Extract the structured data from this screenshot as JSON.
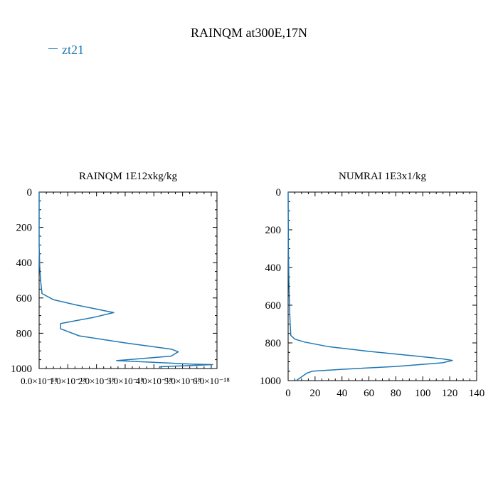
{
  "figure": {
    "title": "RAINQM at300E,17N",
    "legend": {
      "label": "zt21",
      "color": "#1f77b4"
    }
  },
  "chart_data": [
    {
      "type": "line",
      "title": "RAINQM  1E12xkg/kg",
      "xlabel": "",
      "ylabel": "",
      "xlim": [
        0,
        6.2e-18
      ],
      "ylim": [
        1000,
        0
      ],
      "x_ticks": [
        0,
        1e-18,
        2e-18,
        3e-18,
        4e-18,
        5e-18,
        6e-18
      ],
      "x_tick_labels": [
        "0.0×10⁻¹⁸",
        "1.0×10⁻¹⁸",
        "2.0×10⁻¹⁸",
        "3.0×10⁻¹⁸",
        "4.0×10⁻¹⁸",
        "5.0×10⁻¹⁸",
        "6.0×10⁻¹⁸"
      ],
      "y_ticks": [
        0,
        200,
        400,
        600,
        800,
        1000
      ],
      "y_tick_labels": [
        "0",
        "200",
        "400",
        "600",
        "800",
        "1000"
      ],
      "series": [
        {
          "name": "zt21",
          "color": "#1f77b4",
          "points": [
            [
              0,
              0
            ],
            [
              0,
              300
            ],
            [
              2e-20,
              420
            ],
            [
              5e-20,
              500
            ],
            [
              1e-19,
              575
            ],
            [
              5e-19,
              610
            ],
            [
              1.3e-18,
              640
            ],
            [
              2.6e-18,
              683
            ],
            [
              1.9e-18,
              710
            ],
            [
              7.5e-19,
              745
            ],
            [
              7.5e-19,
              775
            ],
            [
              1.4e-18,
              815
            ],
            [
              3e-18,
              855
            ],
            [
              4.6e-18,
              890
            ],
            [
              4.85e-18,
              905
            ],
            [
              4.6e-18,
              930
            ],
            [
              2.7e-18,
              955
            ],
            [
              5.3e-18,
              975
            ],
            [
              6.05e-18,
              978
            ],
            [
              4.2e-18,
              990
            ],
            [
              4.2e-18,
              1000
            ]
          ]
        }
      ]
    },
    {
      "type": "line",
      "title": "NUMRAI  1E3x1/kg",
      "xlabel": "",
      "ylabel": "",
      "xlim": [
        0,
        140
      ],
      "ylim": [
        1000,
        0
      ],
      "x_ticks": [
        0,
        20,
        40,
        60,
        80,
        100,
        120,
        140
      ],
      "x_tick_labels": [
        "0",
        "20",
        "40",
        "60",
        "80",
        "100",
        "120",
        "140"
      ],
      "y_ticks": [
        0,
        200,
        400,
        600,
        800,
        1000
      ],
      "y_tick_labels": [
        "0",
        "200",
        "400",
        "600",
        "800",
        "1000"
      ],
      "series": [
        {
          "name": "zt21",
          "color": "#1f77b4",
          "points": [
            [
              0,
              0
            ],
            [
              0.2,
              300
            ],
            [
              0.5,
              450
            ],
            [
              1,
              600
            ],
            [
              1.5,
              700
            ],
            [
              2,
              760
            ],
            [
              5,
              780
            ],
            [
              12,
              795
            ],
            [
              30,
              820
            ],
            [
              60,
              845
            ],
            [
              95,
              870
            ],
            [
              115,
              885
            ],
            [
              122,
              893
            ],
            [
              115,
              905
            ],
            [
              80,
              925
            ],
            [
              40,
              940
            ],
            [
              18,
              950
            ],
            [
              14,
              960
            ],
            [
              12,
              970
            ],
            [
              10,
              980
            ],
            [
              8,
              990
            ],
            [
              6,
              1000
            ]
          ]
        }
      ]
    }
  ]
}
